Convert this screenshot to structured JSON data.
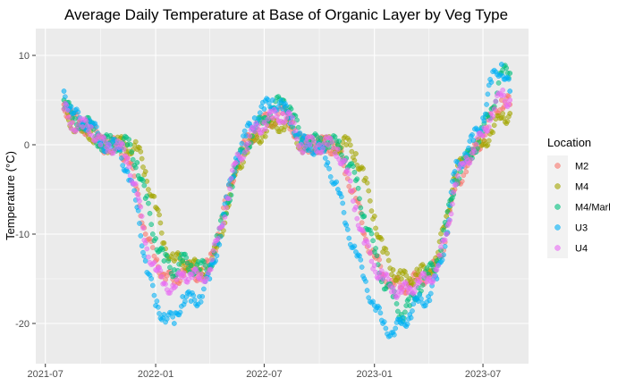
{
  "chart_data": {
    "type": "scatter",
    "title": "Average Daily Temperature at Base of Organic Layer by Veg Type",
    "xlabel": "",
    "ylabel": "Temperature (°C)",
    "x_axis": "date",
    "xlim": [
      "2021-06-15",
      "2023-09-15"
    ],
    "ylim": [
      -24.5,
      13
    ],
    "x_ticks": [
      {
        "date": "2021-07-01",
        "label": "2021-07"
      },
      {
        "date": "2022-01-01",
        "label": "2022-01"
      },
      {
        "date": "2022-07-01",
        "label": "2022-07"
      },
      {
        "date": "2023-01-01",
        "label": "2023-01"
      },
      {
        "date": "2023-07-01",
        "label": "2023-07"
      }
    ],
    "y_ticks": [
      {
        "value": -20,
        "label": "-20"
      },
      {
        "value": -10,
        "label": "-10"
      },
      {
        "value": 0,
        "label": "0"
      },
      {
        "value": 10,
        "label": "10"
      }
    ],
    "grid": true,
    "legend_position": "right",
    "legend_title": "Location",
    "series": [
      {
        "name": "M2",
        "color": "#F8766D",
        "x": [
          "2021-08-01",
          "2021-08-15",
          "2021-09-01",
          "2021-09-15",
          "2021-10-01",
          "2021-10-15",
          "2021-11-01",
          "2021-11-15",
          "2021-12-01",
          "2021-12-15",
          "2022-01-01",
          "2022-01-15",
          "2022-02-01",
          "2022-02-15",
          "2022-03-01",
          "2022-03-15",
          "2022-04-01",
          "2022-04-15",
          "2022-05-01",
          "2022-05-15",
          "2022-06-01",
          "2022-06-15",
          "2022-07-01",
          "2022-07-15",
          "2022-08-01",
          "2022-08-15",
          "2022-09-01",
          "2022-09-15",
          "2022-10-01",
          "2022-10-15",
          "2022-11-01",
          "2022-11-15",
          "2022-12-01",
          "2022-12-15",
          "2023-01-01",
          "2023-01-15",
          "2023-02-01",
          "2023-02-15",
          "2023-03-01",
          "2023-03-15",
          "2023-04-01",
          "2023-04-15",
          "2023-05-01",
          "2023-05-15",
          "2023-06-01",
          "2023-06-15",
          "2023-07-01",
          "2023-07-15",
          "2023-08-01",
          "2023-08-15"
        ],
        "y": [
          4.5,
          3,
          2,
          2,
          0,
          0,
          -0.2,
          -1.5,
          -5,
          -10,
          -13,
          -14.5,
          -15.5,
          -14,
          -14,
          -14.5,
          -13.5,
          -10,
          -6,
          -2,
          0,
          1.5,
          2.5,
          3,
          3.5,
          2.5,
          0,
          0,
          0,
          0,
          -0.5,
          -3,
          -6,
          -10,
          -12.5,
          -14.5,
          -15.5,
          -16,
          -15.5,
          -15,
          -14.5,
          -13.5,
          -10,
          -5,
          -2.5,
          -1,
          1,
          3,
          5,
          4.5
        ]
      },
      {
        "name": "M4",
        "color": "#A3A500",
        "x": [
          "2021-08-01",
          "2021-08-15",
          "2021-09-01",
          "2021-09-15",
          "2021-10-01",
          "2021-10-15",
          "2021-11-01",
          "2021-11-15",
          "2021-12-01",
          "2021-12-15",
          "2022-01-01",
          "2022-01-15",
          "2022-02-01",
          "2022-02-15",
          "2022-03-01",
          "2022-03-15",
          "2022-04-01",
          "2022-04-15",
          "2022-05-01",
          "2022-05-15",
          "2022-06-01",
          "2022-06-15",
          "2022-07-01",
          "2022-07-15",
          "2022-08-01",
          "2022-08-15",
          "2022-09-01",
          "2022-09-15",
          "2022-10-01",
          "2022-10-15",
          "2022-11-01",
          "2022-11-15",
          "2022-12-01",
          "2022-12-15",
          "2023-01-01",
          "2023-01-15",
          "2023-02-01",
          "2023-02-15",
          "2023-03-01",
          "2023-03-15",
          "2023-04-01",
          "2023-04-15",
          "2023-05-01",
          "2023-05-15",
          "2023-06-01",
          "2023-06-15",
          "2023-07-01",
          "2023-07-15",
          "2023-08-01",
          "2023-08-15"
        ],
        "y": [
          4,
          2.5,
          1.5,
          1.5,
          0,
          0,
          0,
          0,
          -0.5,
          -3,
          -7,
          -11,
          -13,
          -13,
          -13.5,
          -14,
          -14,
          -11,
          -7,
          -3,
          -0.5,
          0.5,
          1.5,
          2,
          2.5,
          2,
          0,
          0,
          0,
          0,
          0,
          0,
          -1,
          -4,
          -8,
          -12,
          -14,
          -15,
          -15,
          -14.5,
          -14,
          -13,
          -8,
          -3.5,
          -1.5,
          -0.5,
          0,
          1.5,
          3,
          3.5
        ]
      },
      {
        "name": "M4/Marl",
        "color": "#00BF7D",
        "x": [
          "2021-08-01",
          "2021-08-15",
          "2021-09-01",
          "2021-09-15",
          "2021-10-01",
          "2021-10-15",
          "2021-11-01",
          "2021-11-15",
          "2021-12-01",
          "2021-12-15",
          "2022-01-01",
          "2022-01-15",
          "2022-02-01",
          "2022-02-15",
          "2022-03-01",
          "2022-03-15",
          "2022-04-01",
          "2022-04-15",
          "2022-05-01",
          "2022-05-15",
          "2022-06-01",
          "2022-06-15",
          "2022-07-01",
          "2022-07-15",
          "2022-08-01",
          "2022-08-15",
          "2022-09-01",
          "2022-09-15",
          "2022-10-01",
          "2022-10-15",
          "2022-11-01",
          "2022-11-15",
          "2022-12-01",
          "2022-12-15",
          "2023-01-01",
          "2023-01-15",
          "2023-02-01",
          "2023-02-15",
          "2023-03-01",
          "2023-03-15",
          "2023-04-01",
          "2023-04-15",
          "2023-05-01",
          "2023-05-15",
          "2023-06-01",
          "2023-06-15",
          "2023-07-01",
          "2023-07-15",
          "2023-08-01",
          "2023-08-15"
        ],
        "y": [
          5,
          3,
          2.5,
          2,
          0.2,
          0.2,
          0.2,
          0,
          -2,
          -6,
          -10.5,
          -13,
          -14,
          -13,
          -13.5,
          -14,
          -13.5,
          -10.5,
          -6.5,
          -2.5,
          0,
          1.5,
          3,
          4,
          5,
          4,
          0.3,
          0.3,
          0.3,
          0.3,
          0,
          -1.5,
          -4,
          -8,
          -12,
          -15,
          -17,
          -19,
          -18,
          -16,
          -14.5,
          -13,
          -9,
          -4,
          -2,
          -0.5,
          1.5,
          4,
          8,
          8
        ]
      },
      {
        "name": "U3",
        "color": "#00B0F6",
        "x": [
          "2021-08-01",
          "2021-08-15",
          "2021-09-01",
          "2021-09-15",
          "2021-10-01",
          "2021-10-15",
          "2021-11-01",
          "2021-11-15",
          "2021-12-01",
          "2021-12-15",
          "2022-01-01",
          "2022-01-15",
          "2022-02-01",
          "2022-02-15",
          "2022-03-01",
          "2022-03-15",
          "2022-04-01",
          "2022-04-15",
          "2022-05-01",
          "2022-05-15",
          "2022-06-01",
          "2022-06-15",
          "2022-07-01",
          "2022-07-15",
          "2022-08-01",
          "2022-08-15",
          "2022-09-01",
          "2022-09-15",
          "2022-10-01",
          "2022-10-15",
          "2022-11-01",
          "2022-11-15",
          "2022-12-01",
          "2022-12-15",
          "2023-01-01",
          "2023-01-15",
          "2023-02-01",
          "2023-02-15",
          "2023-03-01",
          "2023-03-15",
          "2023-04-01",
          "2023-04-15",
          "2023-05-01",
          "2023-05-15",
          "2023-06-01",
          "2023-06-15",
          "2023-07-01",
          "2023-07-15",
          "2023-08-01",
          "2023-08-15"
        ],
        "y": [
          6,
          3.5,
          2.5,
          2.5,
          0.2,
          0,
          -0.5,
          -3,
          -7,
          -13,
          -18,
          -19,
          -20,
          -17,
          -17.5,
          -17,
          -15,
          -11,
          -6,
          -1.5,
          1,
          3,
          4,
          5,
          4,
          3,
          0.2,
          0,
          -0.5,
          -2,
          -5,
          -9,
          -12,
          -15,
          -18,
          -20,
          -21,
          -20,
          -19,
          -17.5,
          -17,
          -15,
          -10,
          -3,
          -1,
          0.5,
          3,
          7,
          9,
          6
        ]
      },
      {
        "name": "U4",
        "color": "#E76BF3",
        "x": [
          "2021-08-01",
          "2021-08-15",
          "2021-09-01",
          "2021-09-15",
          "2021-10-01",
          "2021-10-15",
          "2021-11-01",
          "2021-11-15",
          "2021-12-01",
          "2021-12-15",
          "2022-01-01",
          "2022-01-15",
          "2022-02-01",
          "2022-02-15",
          "2022-03-01",
          "2022-03-15",
          "2022-04-01",
          "2022-04-15",
          "2022-05-01",
          "2022-05-15",
          "2022-06-01",
          "2022-06-15",
          "2022-07-01",
          "2022-07-15",
          "2022-08-01",
          "2022-08-15",
          "2022-09-01",
          "2022-09-15",
          "2022-10-01",
          "2022-10-15",
          "2022-11-01",
          "2022-11-15",
          "2022-12-01",
          "2022-12-15",
          "2023-01-01",
          "2023-01-15",
          "2023-02-01",
          "2023-02-15",
          "2023-03-01",
          "2023-03-15",
          "2023-04-01",
          "2023-04-15",
          "2023-05-01",
          "2023-05-15",
          "2023-06-01",
          "2023-06-15",
          "2023-07-01",
          "2023-07-15",
          "2023-08-01",
          "2023-08-15"
        ],
        "y": [
          4,
          2.5,
          2,
          2,
          0,
          0,
          -0.3,
          -1.5,
          -5.5,
          -11,
          -14,
          -15.5,
          -16,
          -14.5,
          -14.5,
          -15,
          -14,
          -10.5,
          -6,
          -2,
          0,
          1.5,
          2.5,
          3,
          3.5,
          2.5,
          0,
          0,
          0,
          0,
          -0.5,
          -3,
          -7,
          -11,
          -13.5,
          -15,
          -16,
          -16.5,
          -16,
          -15.5,
          -15,
          -14,
          -10,
          -4.5,
          -2,
          -0.5,
          1,
          3.5,
          5.5,
          5
        ]
      }
    ]
  }
}
